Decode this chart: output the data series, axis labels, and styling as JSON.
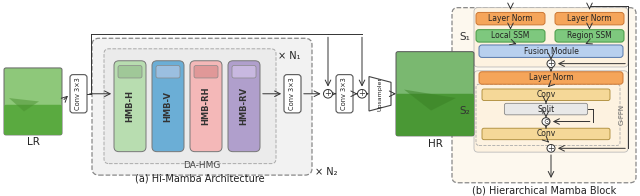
{
  "title_a": "(a) Hi-Mamba Architecture",
  "title_b": "(b) Hierarchical Mamba Block",
  "bg_color": "#ffffff",
  "lr_label": "LR",
  "hr_label": "HR",
  "conv_label": "Conv 3×3",
  "da_hmg_label": "DA-HMG",
  "n1_label": "× N₁",
  "n2_label": "× N₂",
  "upsample_label": "Upsampler",
  "hmb_blocks": [
    {
      "label": "HMB-H",
      "color": "#b8ddb0",
      "icon_color": "#a0c898"
    },
    {
      "label": "HMB-V",
      "color": "#6baed6",
      "icon_color": "#9bbfe0"
    },
    {
      "label": "HMB-RH",
      "color": "#f4b8b8",
      "icon_color": "#e09898"
    },
    {
      "label": "HMB-RV",
      "color": "#b09fcc",
      "icon_color": "#c8b8e0"
    }
  ],
  "layer_norm_color": "#f5a55a",
  "local_ssm_color": "#7ec87e",
  "region_ssm_color": "#7ec87e",
  "fusion_color": "#b8d0ee",
  "conv_block_color": "#f5d898",
  "split_color": "#e8e8e8",
  "s1_label": "S₁",
  "s2_label": "S₂",
  "gffn_label": "G-FFN",
  "outer_bg": "#fdf8ee"
}
